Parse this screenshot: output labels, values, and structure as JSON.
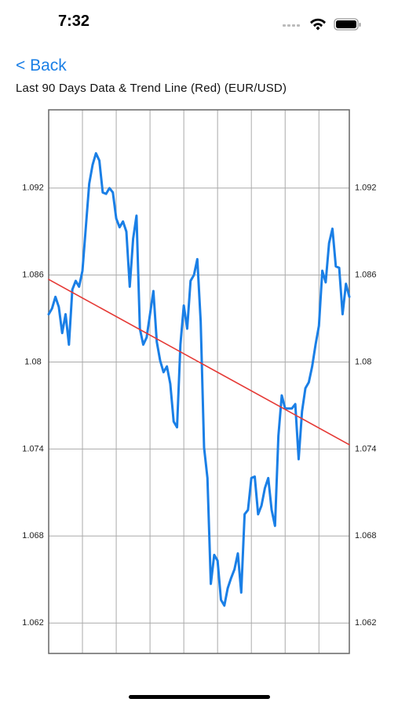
{
  "status_bar": {
    "time": "7:32"
  },
  "nav": {
    "back": "< Back"
  },
  "chart_data": {
    "type": "line",
    "title": "Last 90 Days Data & Trend Line (Red) (EUR/USD)",
    "x": [
      0,
      1,
      2,
      3,
      4,
      5,
      6,
      7,
      8,
      9,
      10,
      11,
      12,
      13,
      14,
      15,
      16,
      17,
      18,
      19,
      20,
      21,
      22,
      23,
      24,
      25,
      26,
      27,
      28,
      29,
      30,
      31,
      32,
      33,
      34,
      35,
      36,
      37,
      38,
      39,
      40,
      41,
      42,
      43,
      44,
      45,
      46,
      47,
      48,
      49,
      50,
      51,
      52,
      53,
      54,
      55,
      56,
      57,
      58,
      59,
      60,
      61,
      62,
      63,
      64,
      65,
      66,
      67,
      68,
      69,
      70,
      71,
      72,
      73,
      74,
      75,
      76,
      77,
      78,
      79,
      80,
      81,
      82,
      83,
      84,
      85,
      86,
      87,
      88,
      89
    ],
    "series": [
      {
        "color": "#1a7fe6",
        "values": [
          1.0833,
          1.0837,
          1.0845,
          1.0838,
          1.082,
          1.0833,
          1.0812,
          1.085,
          1.0856,
          1.0852,
          1.0863,
          1.0893,
          1.0923,
          1.0936,
          1.0944,
          1.0939,
          1.0917,
          1.0916,
          1.092,
          1.0917,
          1.0899,
          1.0893,
          1.0897,
          1.089,
          1.0852,
          1.0885,
          1.0901,
          1.0823,
          1.0812,
          1.0817,
          1.0833,
          1.0849,
          1.0814,
          1.0801,
          1.0793,
          1.0797,
          1.0785,
          1.0759,
          1.0755,
          1.0812,
          1.0839,
          1.0823,
          1.0856,
          1.086,
          1.0871,
          1.0828,
          1.0741,
          1.072,
          1.0647,
          1.0667,
          1.0663,
          1.0636,
          1.0632,
          1.0644,
          1.0651,
          1.0657,
          1.0668,
          1.0641,
          1.0695,
          1.0698,
          1.072,
          1.0721,
          1.0695,
          1.0701,
          1.0713,
          1.072,
          1.0698,
          1.0687,
          1.0749,
          1.0777,
          1.0768,
          1.0768,
          1.0768,
          1.0771,
          1.0733,
          1.0766,
          1.0782,
          1.0786,
          1.0797,
          1.0812,
          1.0825,
          1.0863,
          1.0855,
          1.0882,
          1.0892,
          1.0866,
          1.0865,
          1.0833,
          1.0854,
          1.0845
        ]
      },
      {
        "color": "#e53935",
        "x": [
          0,
          89
        ],
        "values": [
          1.0857,
          1.0743
        ]
      }
    ],
    "xlim": [
      0,
      89
    ],
    "xticks": [
      10,
      20,
      30,
      40,
      50,
      60,
      70,
      80
    ],
    "ylim": [
      1.0599,
      1.0974
    ],
    "yticks": [
      1.062,
      1.068,
      1.074,
      1.08,
      1.086,
      1.092
    ],
    "grid": true
  }
}
